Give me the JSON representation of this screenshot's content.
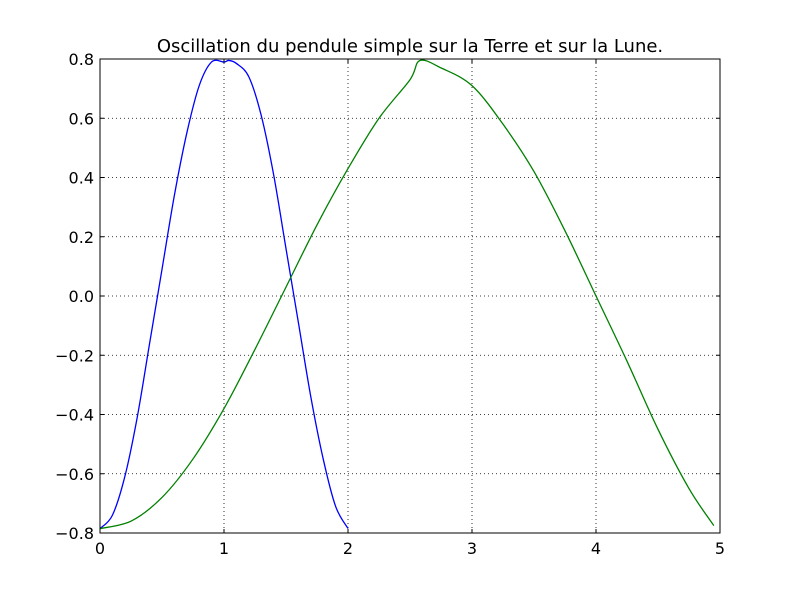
{
  "chart_data": {
    "type": "line",
    "title": "Oscillation du pendule simple sur la Terre et sur la Lune.",
    "xlabel": "",
    "ylabel": "",
    "xlim": [
      0,
      5
    ],
    "ylim": [
      -0.8,
      0.8
    ],
    "grid": true,
    "x_ticks": [
      0,
      1,
      2,
      3,
      4,
      5
    ],
    "x_tick_labels": [
      "0",
      "1",
      "2",
      "3",
      "4",
      "5"
    ],
    "y_ticks": [
      -0.8,
      -0.6,
      -0.4,
      -0.2,
      0.0,
      0.2,
      0.4,
      0.6,
      0.8
    ],
    "y_tick_labels": [
      "−0.8",
      "−0.6",
      "−0.4",
      "−0.2",
      "0.0",
      "0.2",
      "0.4",
      "0.6",
      "0.8"
    ],
    "series": [
      {
        "color": "#0000ff",
        "x": [
          0,
          0.1,
          0.2,
          0.3,
          0.4,
          0.5,
          0.6,
          0.7,
          0.8,
          0.9,
          1.0,
          1.04,
          1.1,
          1.2,
          1.3,
          1.4,
          1.5,
          1.6,
          1.7,
          1.8,
          1.9,
          2.0
        ],
        "y": [
          -0.785,
          -0.74,
          -0.61,
          -0.41,
          -0.16,
          0.09,
          0.34,
          0.55,
          0.71,
          0.79,
          0.79,
          0.795,
          0.785,
          0.74,
          0.61,
          0.41,
          0.16,
          -0.09,
          -0.34,
          -0.55,
          -0.71,
          -0.785
        ]
      },
      {
        "color": "#008000",
        "x": [
          0,
          0.25,
          0.5,
          0.75,
          1.0,
          1.25,
          1.5,
          1.75,
          2.0,
          2.25,
          2.5,
          2.58,
          2.75,
          3.0,
          3.25,
          3.5,
          3.75,
          4.0,
          4.25,
          4.5,
          4.75,
          4.95
        ],
        "y": [
          -0.785,
          -0.76,
          -0.68,
          -0.55,
          -0.38,
          -0.18,
          0.03,
          0.24,
          0.43,
          0.6,
          0.73,
          0.795,
          0.77,
          0.71,
          0.58,
          0.42,
          0.22,
          0.0,
          -0.22,
          -0.45,
          -0.65,
          -0.775
        ]
      }
    ]
  }
}
